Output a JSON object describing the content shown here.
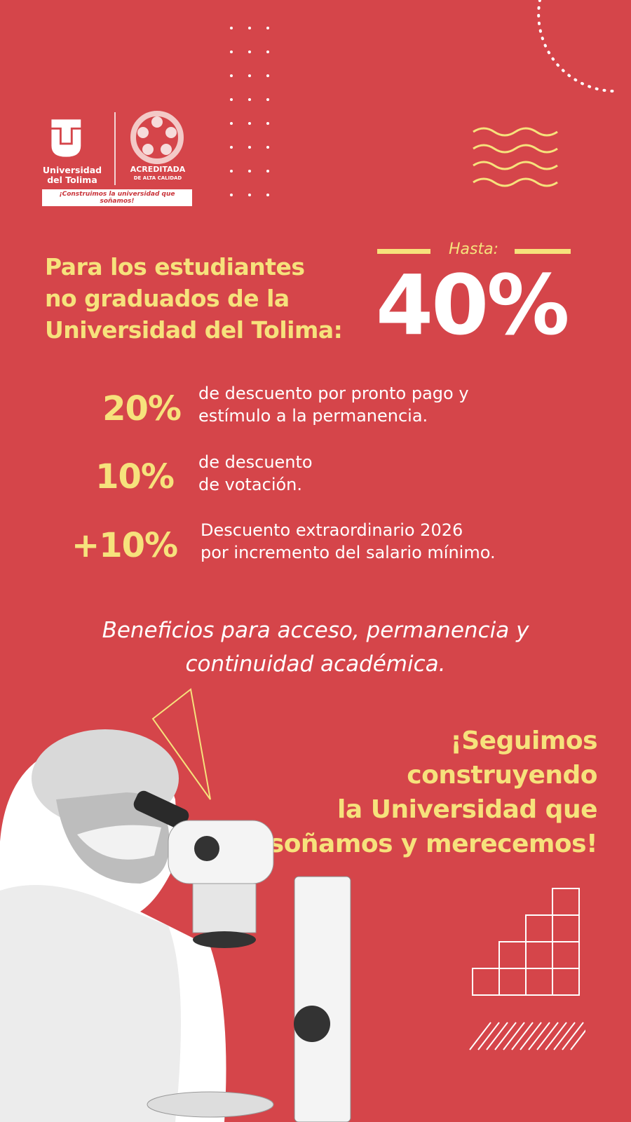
{
  "brand": {
    "university_name": [
      "Universidad",
      "del Tolima"
    ],
    "accreditation": {
      "title": "ACREDITADA",
      "subtitle": "DE ALTA CALIDAD"
    },
    "slogan": "¡Construimos la universidad que soñamos!"
  },
  "headline": [
    "Para los estudiantes",
    "no graduados de la",
    "Universidad del Tolima:"
  ],
  "highlight": {
    "prefix": "Hasta:",
    "value": "40%"
  },
  "discounts": [
    {
      "percent": "20%",
      "lines": [
        "de descuento por pronto pago y",
        "estímulo a la permanencia."
      ]
    },
    {
      "percent": "10%",
      "lines": [
        "de descuento",
        "de votación."
      ]
    },
    {
      "percent": "+10%",
      "lines": [
        "Descuento extraordinario 2026",
        "por incremento del salario mínimo."
      ]
    }
  ],
  "benefits": [
    "Beneficios para acceso, permanencia y",
    "continuidad académica."
  ],
  "closing": [
    "¡Seguimos construyendo",
    "la Universidad que",
    "soñamos y merecemos!"
  ],
  "colors": {
    "background": "#d5454a",
    "accent": "#f6e27c",
    "text": "#ffffff"
  },
  "photo": {
    "description_icon": "scientist-with-microscope-image"
  }
}
